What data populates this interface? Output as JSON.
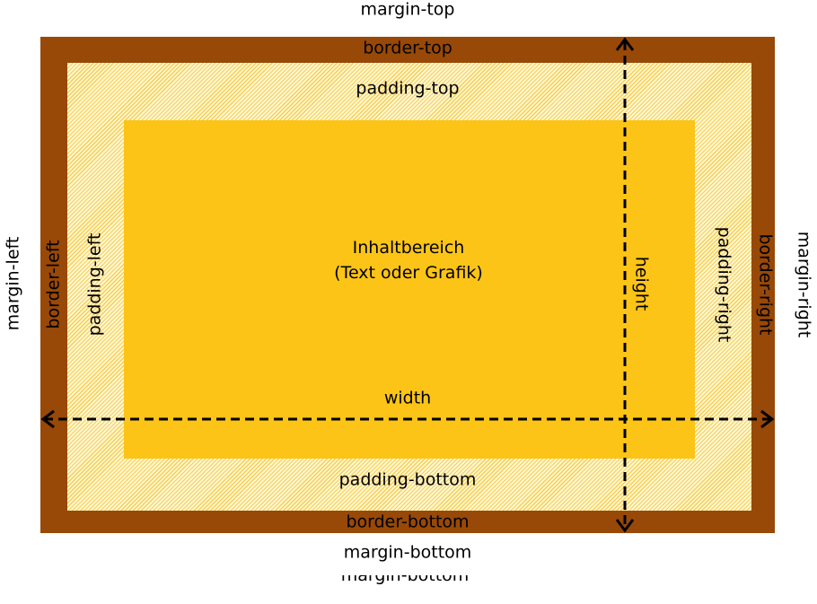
{
  "labels": {
    "margin_top": "margin-top",
    "margin_bottom": "margin-bottom",
    "margin_left": "margin-left",
    "margin_right": "margin-right",
    "border_top": "border-top",
    "border_bottom": "border-bottom",
    "border_left": "border-left",
    "border_right": "border-right",
    "padding_top": "padding-top",
    "padding_bottom": "padding-bottom",
    "padding_left": "padding-left",
    "padding_right": "padding-right",
    "content_line1": "Inhaltbereich",
    "content_line2": "(Text oder Grafik)",
    "width": "width",
    "height": "height",
    "margin_bottom_ghost": "margin-bottom"
  },
  "colors": {
    "border": "#984807",
    "padding_stripe": "#f7cf53",
    "padding_base": "#fff7d6",
    "content": "#fcc416",
    "arrow": "#000000"
  }
}
